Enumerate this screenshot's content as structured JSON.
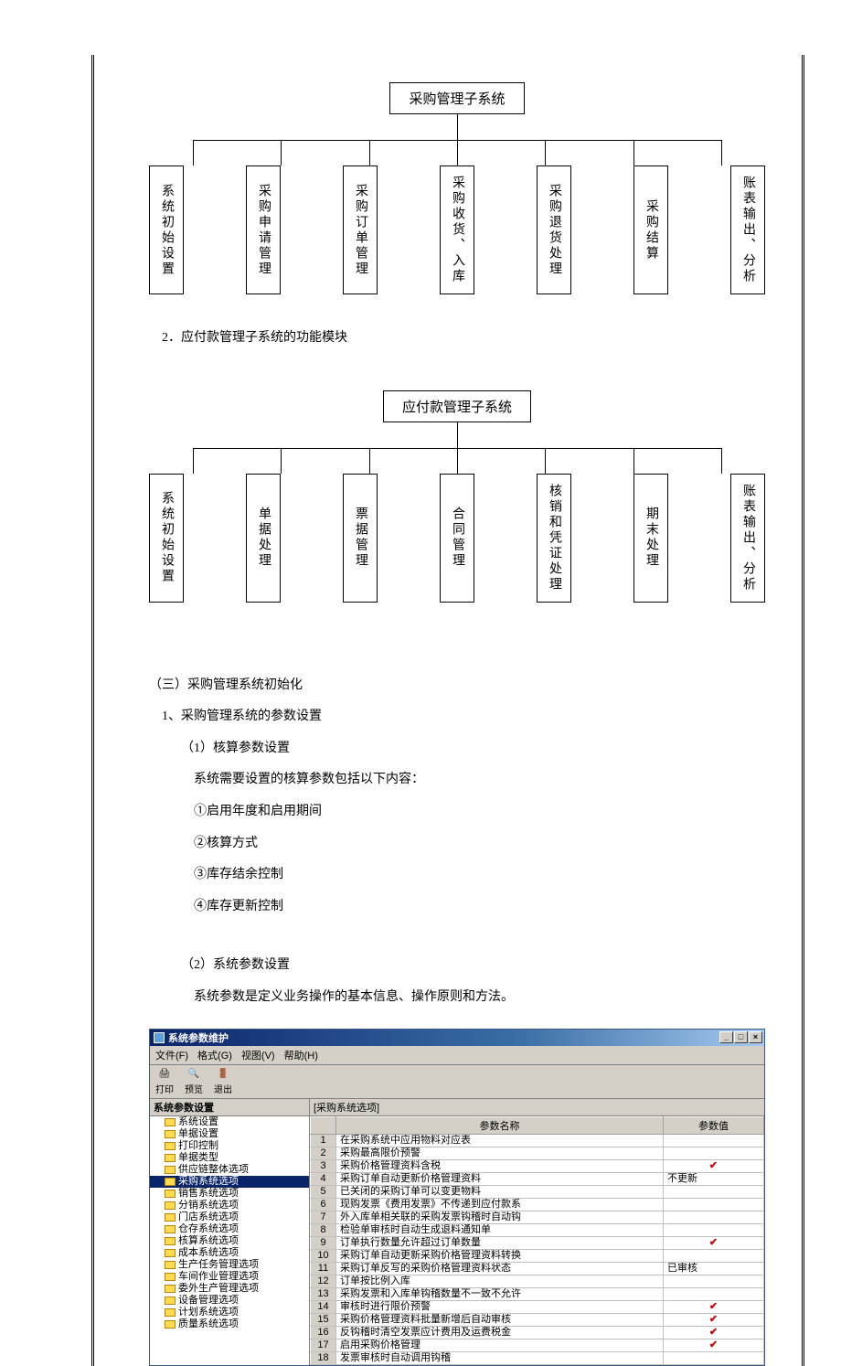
{
  "orgchart1": {
    "root": "采购管理子系统",
    "children": [
      "系统初始设置",
      "采购申请管理",
      "采购订单管理",
      "采购收货、入库",
      "采购退货处理",
      "采购结算",
      "账表输出、分析"
    ]
  },
  "text_block1": {
    "heading": "2．应付款管理子系统的功能模块"
  },
  "orgchart2": {
    "root": "应付款管理子系统",
    "children": [
      "系统初始设置",
      "单据处理",
      "票据管理",
      "合同管理",
      "核销和凭证处理",
      "期末处理",
      "账表输出、分析"
    ]
  },
  "text_block2": {
    "h1": "（三）采购管理系统初始化",
    "h2": "1、采购管理系统的参数设置",
    "p1": "（1）核算参数设置",
    "p2": "系统需要设置的核算参数包括以下内容：",
    "p3": "①启用年度和启用期间",
    "p4": "②核算方式",
    "p5": "③库存结余控制",
    "p6": "④库存更新控制",
    "p7": "（2）系统参数设置",
    "p8": "系统参数是定义业务操作的基本信息、操作原则和方法。"
  },
  "window": {
    "title": "系统参数维护",
    "win_btns": {
      "min": "_",
      "max": "□",
      "close": "×"
    },
    "menus": [
      "文件(F)",
      "格式(G)",
      "视图(V)",
      "帮助(H)"
    ],
    "tools": [
      {
        "icon": "🖨",
        "label": "打印"
      },
      {
        "icon": "🔍",
        "label": "预览"
      },
      {
        "icon": "🚪",
        "label": "退出"
      }
    ],
    "tree_header": "系统参数设置",
    "tree": [
      {
        "label": "系统设置",
        "selected": false
      },
      {
        "label": "单据设置",
        "selected": false
      },
      {
        "label": "打印控制",
        "selected": false
      },
      {
        "label": "单据类型",
        "selected": false
      },
      {
        "label": "供应链整体选项",
        "selected": false
      },
      {
        "label": "采购系统选项",
        "selected": true
      },
      {
        "label": "销售系统选项",
        "selected": false
      },
      {
        "label": "分销系统选项",
        "selected": false
      },
      {
        "label": "门店系统选项",
        "selected": false
      },
      {
        "label": "仓存系统选项",
        "selected": false
      },
      {
        "label": "核算系统选项",
        "selected": false
      },
      {
        "label": "成本系统选项",
        "selected": false
      },
      {
        "label": "生产任务管理选项",
        "selected": false
      },
      {
        "label": "车间作业管理选项",
        "selected": false
      },
      {
        "label": "委外生产管理选项",
        "selected": false
      },
      {
        "label": "设备管理选项",
        "selected": false
      },
      {
        "label": "计划系统选项",
        "selected": false
      },
      {
        "label": "质量系统选项",
        "selected": false
      }
    ],
    "grid_caption": "[采购系统选项]",
    "grid_headers": {
      "col1": "参数名称",
      "col2": "参数值"
    },
    "grid_rows": [
      {
        "n": "1",
        "name": "在采购系统中应用物料对应表",
        "value": ""
      },
      {
        "n": "2",
        "name": "采购最高限价预警",
        "value": ""
      },
      {
        "n": "3",
        "name": "采购价格管理资料含税",
        "value": "✔"
      },
      {
        "n": "4",
        "name": "采购订单自动更新价格管理资料",
        "value": "不更新"
      },
      {
        "n": "5",
        "name": "已关闭的采购订单可以变更物料",
        "value": ""
      },
      {
        "n": "6",
        "name": "现购发票《费用发票》不传递到应付款系",
        "value": ""
      },
      {
        "n": "7",
        "name": "外入库单相关联的采购发票钩稽时自动钩",
        "value": ""
      },
      {
        "n": "8",
        "name": "检验单审核时自动生成退料通知单",
        "value": ""
      },
      {
        "n": "9",
        "name": "订单执行数量允许超过订单数量",
        "value": "✔"
      },
      {
        "n": "10",
        "name": "采购订单自动更新采购价格管理资料转换",
        "value": ""
      },
      {
        "n": "11",
        "name": "采购订单反写的采购价格管理资料状态",
        "value": "已审核"
      },
      {
        "n": "12",
        "name": "订单按比例入库",
        "value": ""
      },
      {
        "n": "13",
        "name": "采购发票和入库单钩稽数量不一致不允许",
        "value": ""
      },
      {
        "n": "14",
        "name": "审核时进行限价预警",
        "value": "✔"
      },
      {
        "n": "15",
        "name": "采购价格管理资料批量新增后自动审核",
        "value": "✔"
      },
      {
        "n": "16",
        "name": "反钩稽时清空发票应计费用及运费税金",
        "value": "✔"
      },
      {
        "n": "17",
        "name": "启用采购价格管理",
        "value": "✔"
      },
      {
        "n": "18",
        "name": "发票审核时自动调用钩稽",
        "value": ""
      }
    ]
  }
}
